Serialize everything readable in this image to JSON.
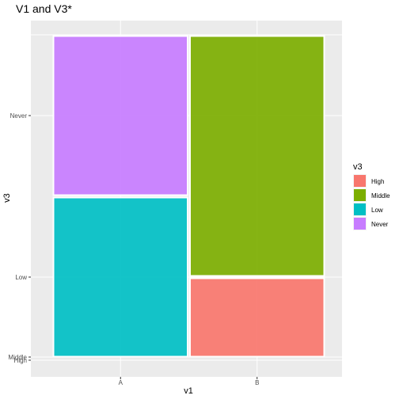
{
  "chart_data": {
    "type": "mosaic",
    "title": "V1 and V3*",
    "xlabel": "v1",
    "ylabel": "v3",
    "x_categories": [
      "A",
      "B"
    ],
    "y_ticks": [
      "High",
      "Middle",
      "Low",
      "Never"
    ],
    "legend": {
      "title": "v3",
      "position": "right",
      "entries": [
        {
          "label": "High",
          "color": "#F8766D"
        },
        {
          "label": "Middle",
          "color": "#7CAE00"
        },
        {
          "label": "Low",
          "color": "#00BFC4"
        },
        {
          "label": "Never",
          "color": "#C77CFF"
        }
      ]
    },
    "column_widths": [
      0.5,
      0.5
    ],
    "proportions": [
      {
        "category": "A",
        "High": 0.0,
        "Middle": 0.0,
        "Low": 0.5,
        "Never": 0.5
      },
      {
        "category": "B",
        "High": 0.25,
        "Middle": 0.75,
        "Low": 0.0,
        "Never": 0.0
      }
    ],
    "grid": true
  }
}
